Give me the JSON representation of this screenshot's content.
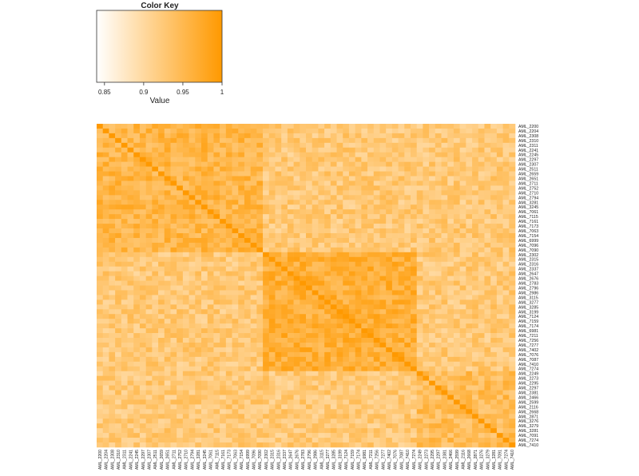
{
  "chart_data": {
    "type": "heatmap",
    "title": "",
    "color_key": {
      "title": "Color Key",
      "axis_label": "Value",
      "ticks": [
        "0.85",
        "0.9",
        "0.95",
        "1"
      ],
      "range": [
        0.84,
        1.0
      ],
      "color_low": "#ffffff",
      "color_high": "#ff9900"
    },
    "labels": [
      "AML_2200",
      "AML_2204",
      "AML_2308",
      "AML_2310",
      "AML_2311",
      "AML_2241",
      "AML_2245",
      "AML_2297",
      "AML_2307",
      "AML_2511",
      "AML_2659",
      "AML_2651",
      "AML_2711",
      "AML_2752",
      "AML_2710",
      "AML_2794",
      "AML_3281",
      "AML_3245",
      "AML_7061",
      "AML_7115",
      "AML_7161",
      "AML_7173",
      "AML_7063",
      "AML_7154",
      "AML_6999",
      "AML_7096",
      "AML_7090",
      "AML_2302",
      "AML_2315",
      "AML_2316",
      "AML_2337",
      "AML_2647",
      "AML_2676",
      "AML_2783",
      "AML_2796",
      "AML_2986",
      "AML_3115",
      "AML_3277",
      "AML_3285",
      "AML_3199",
      "AML_7124",
      "AML_7159",
      "AML_7174",
      "AML_6981",
      "AML_7211",
      "AML_7256",
      "AML_7277",
      "AML_7402",
      "AML_7076",
      "AML_7087",
      "AML_7410",
      "AML_7274",
      "AML_2249",
      "AML_2273",
      "AML_2295",
      "AML_2297",
      "AML_2381",
      "AML_2466",
      "AML_2599",
      "AML_2116",
      "AML_2668",
      "AML_2871",
      "AML_3276",
      "AML_3279",
      "AML_3281",
      "AML_7091",
      "AML_7274",
      "AML_7410"
    ],
    "blocks": [
      {
        "start": 0,
        "end": 27,
        "within": 0.955
      },
      {
        "start": 27,
        "end": 52,
        "within": 0.965
      },
      {
        "start": 52,
        "end": 68,
        "within": 0.945
      }
    ],
    "between_blocks": 0.925,
    "diagonal": 1.0
  }
}
